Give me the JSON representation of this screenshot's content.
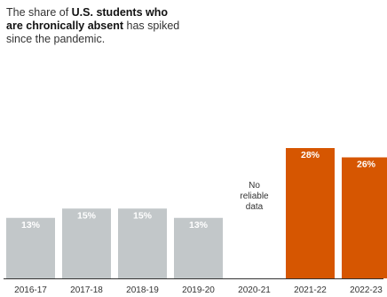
{
  "headline": {
    "lead": "The share of ",
    "bold": "U.S. students who are chronically absent",
    "tail": " has spiked since the pandemic."
  },
  "chart_data": {
    "type": "bar",
    "title": "",
    "xlabel": "",
    "ylabel": "",
    "ylim": [
      0,
      30
    ],
    "grid": false,
    "legend": "none",
    "value_suffix": "%",
    "colors": {
      "pre_pandemic": "#c2c7c9",
      "post_pandemic": "#d65601",
      "baseline": "#333333",
      "tick_label": "#333333",
      "no_data_label": "#333333"
    },
    "categories": [
      "2016-17",
      "2017-18",
      "2018-19",
      "2019-20",
      "2020-21",
      "2021-22",
      "2022-23"
    ],
    "values": [
      13,
      15,
      15,
      13,
      null,
      28,
      26
    ],
    "bar_colors": [
      "pre_pandemic",
      "pre_pandemic",
      "pre_pandemic",
      "pre_pandemic",
      null,
      "post_pandemic",
      "post_pandemic"
    ],
    "value_label_colors": [
      "#ffffff",
      "#ffffff",
      "#ffffff",
      "#ffffff",
      null,
      "#ffffff",
      "#ffffff"
    ],
    "missing_label": [
      "No",
      "reliable",
      "data"
    ]
  }
}
